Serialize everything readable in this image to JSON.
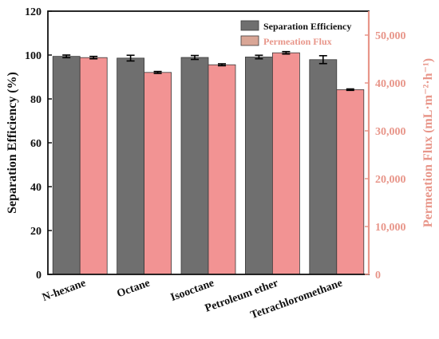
{
  "chart_data": {
    "type": "bar",
    "categories": [
      "N-hexane",
      "Octane",
      "Isooctane",
      "Petroleum ether",
      "Tetrachloromethane"
    ],
    "series": [
      {
        "name": "Separation Efficiency",
        "axis": "left",
        "color": "#6f6f6f",
        "values": [
          99.4,
          98.6,
          98.9,
          99.1,
          97.9
        ],
        "errors": [
          0.6,
          1.3,
          0.9,
          0.8,
          1.8
        ]
      },
      {
        "name": "Permeation Flux",
        "axis": "right",
        "color": "#f29393",
        "values": [
          45300,
          42200,
          43800,
          46300,
          38600
        ],
        "errors": [
          250,
          200,
          200,
          250,
          150
        ]
      }
    ],
    "ylabel": "Separation Efficiency (%)",
    "ylabel2": "Permeation Flux (mL·m⁻²·h⁻¹)",
    "ylim": [
      0,
      120
    ],
    "ylim2": [
      0,
      55000
    ],
    "yticks": [
      0,
      20,
      40,
      60,
      80,
      100,
      120
    ],
    "yticks2": [
      0,
      10000,
      20000,
      30000,
      40000,
      50000
    ],
    "yticklabels2": [
      "0",
      "10,000",
      "20,000",
      "30,000",
      "40,000",
      "50,000"
    ],
    "legend_position": "top-right",
    "legend_swatch_colors": [
      "#6f6f6f",
      "#d9a696"
    ],
    "left_axis_color": "#111111",
    "right_axis_color": "#e8968a",
    "grid": false
  }
}
